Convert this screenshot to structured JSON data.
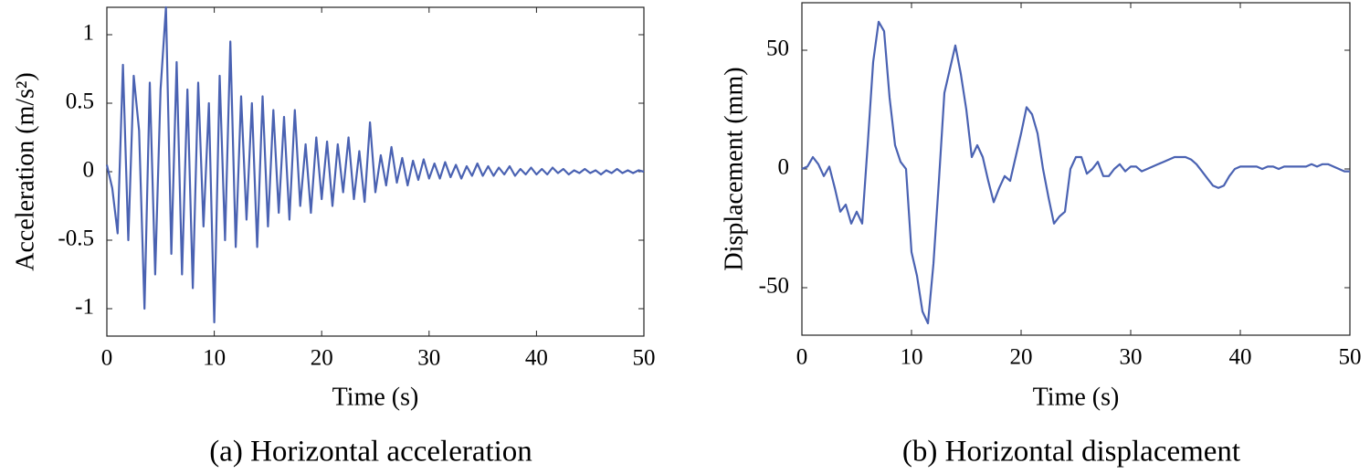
{
  "chart_data": [
    {
      "type": "line",
      "caption": "(a) Horizontal acceleration",
      "xlabel": "Time (s)",
      "ylabel": "Acceleration (m/s²)",
      "color": "#4a62b2",
      "xlim": [
        0,
        50
      ],
      "ylim": [
        -1.2,
        1.2
      ],
      "xticks": [
        0,
        10,
        20,
        30,
        40,
        50
      ],
      "yticks": [
        -1,
        -0.5,
        0,
        0.5,
        1
      ],
      "x": [
        0,
        0.5,
        1,
        1.5,
        2,
        2.5,
        3,
        3.5,
        4,
        4.5,
        5,
        5.5,
        6,
        6.5,
        7,
        7.5,
        8,
        8.5,
        9,
        9.5,
        10,
        10.5,
        11,
        11.5,
        12,
        12.5,
        13,
        13.5,
        14,
        14.5,
        15,
        15.5,
        16,
        16.5,
        17,
        17.5,
        18,
        18.5,
        19,
        19.5,
        20,
        20.5,
        21,
        21.5,
        22,
        22.5,
        23,
        23.5,
        24,
        24.5,
        25,
        25.5,
        26,
        26.5,
        27,
        27.5,
        28,
        28.5,
        29,
        29.5,
        30,
        30.5,
        31,
        31.5,
        32,
        32.5,
        33,
        33.5,
        34,
        34.5,
        35,
        35.5,
        36,
        36.5,
        37,
        37.5,
        38,
        38.5,
        39,
        39.5,
        40,
        40.5,
        41,
        41.5,
        42,
        42.5,
        43,
        43.5,
        44,
        44.5,
        45,
        45.5,
        46,
        46.5,
        47,
        47.5,
        48,
        48.5,
        49,
        49.5,
        50
      ],
      "values": [
        0.05,
        -0.12,
        -0.45,
        0.78,
        -0.5,
        0.7,
        0.3,
        -1.0,
        0.65,
        -0.75,
        0.6,
        1.2,
        -0.6,
        0.8,
        -0.75,
        0.6,
        -0.85,
        0.65,
        -0.4,
        0.5,
        -1.1,
        0.7,
        -0.5,
        0.95,
        -0.55,
        0.55,
        -0.35,
        0.5,
        -0.55,
        0.55,
        -0.4,
        0.45,
        -0.3,
        0.4,
        -0.35,
        0.45,
        -0.25,
        0.2,
        -0.3,
        0.25,
        -0.2,
        0.22,
        -0.25,
        0.2,
        -0.15,
        0.25,
        -0.2,
        0.15,
        -0.22,
        0.36,
        -0.15,
        0.12,
        -0.1,
        0.18,
        -0.08,
        0.1,
        -0.1,
        0.08,
        -0.06,
        0.09,
        -0.05,
        0.06,
        -0.05,
        0.07,
        -0.04,
        0.05,
        -0.05,
        0.04,
        -0.03,
        0.06,
        -0.03,
        0.04,
        -0.03,
        0.03,
        -0.02,
        0.04,
        -0.03,
        0.02,
        -0.02,
        0.03,
        -0.02,
        0.02,
        -0.02,
        0.03,
        -0.01,
        0.02,
        -0.02,
        0.01,
        -0.01,
        0.02,
        -0.01,
        0.01,
        -0.02,
        0.01,
        -0.01,
        0.02,
        -0.01,
        0.01,
        -0.01,
        0.01,
        0
      ]
    },
    {
      "type": "line",
      "caption": "(b) Horizontal displacement",
      "xlabel": "Time (s)",
      "ylabel": "Displacement (mm)",
      "color": "#4a62b2",
      "xlim": [
        0,
        50
      ],
      "ylim": [
        -70,
        70
      ],
      "xticks": [
        0,
        10,
        20,
        30,
        40,
        50
      ],
      "yticks": [
        -50,
        0,
        50
      ],
      "x": [
        0,
        0.5,
        1,
        1.5,
        2,
        2.5,
        3,
        3.5,
        4,
        4.5,
        5,
        5.5,
        6,
        6.5,
        7,
        7.5,
        8,
        8.5,
        9,
        9.5,
        10,
        10.5,
        11,
        11.5,
        12,
        12.5,
        13,
        13.5,
        14,
        14.5,
        15,
        15.5,
        16,
        16.5,
        17,
        17.5,
        18,
        18.5,
        19,
        19.5,
        20,
        20.5,
        21,
        21.5,
        22,
        22.5,
        23,
        23.5,
        24,
        24.5,
        25,
        25.5,
        26,
        26.5,
        27,
        27.5,
        28,
        28.5,
        29,
        29.5,
        30,
        30.5,
        31,
        31.5,
        32,
        32.5,
        33,
        33.5,
        34,
        34.5,
        35,
        35.5,
        36,
        36.5,
        37,
        37.5,
        38,
        38.5,
        39,
        39.5,
        40,
        40.5,
        41,
        41.5,
        42,
        42.5,
        43,
        43.5,
        44,
        44.5,
        45,
        45.5,
        46,
        46.5,
        47,
        47.5,
        48,
        48.5,
        49,
        49.5,
        50
      ],
      "values": [
        0,
        1,
        5,
        2,
        -3,
        1,
        -8,
        -18,
        -15,
        -23,
        -18,
        -23,
        10,
        45,
        62,
        58,
        30,
        10,
        3,
        0,
        -35,
        -45,
        -60,
        -65,
        -40,
        -5,
        32,
        42,
        52,
        40,
        25,
        5,
        10,
        5,
        -5,
        -14,
        -8,
        -3,
        -5,
        5,
        15,
        26,
        23,
        15,
        0,
        -12,
        -23,
        -20,
        -18,
        0,
        5,
        5,
        -2,
        0,
        3,
        -3,
        -3,
        0,
        2,
        -1,
        1,
        1,
        -1,
        0,
        1,
        2,
        3,
        4,
        5,
        5,
        5,
        4,
        2,
        -1,
        -4,
        -7,
        -8,
        -7,
        -3,
        0,
        1,
        1,
        1,
        1,
        0,
        1,
        1,
        0,
        1,
        1,
        1,
        1,
        1,
        2,
        1,
        2,
        2,
        1,
        0,
        -1,
        -1
      ]
    }
  ]
}
